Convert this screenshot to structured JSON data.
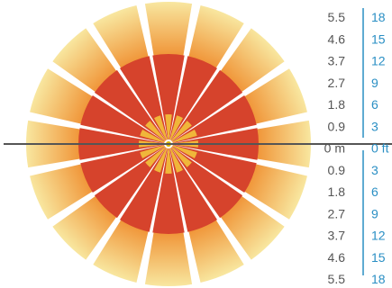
{
  "diagram": {
    "rays": 16,
    "colors": {
      "outer_fade_start": "#ef8a2a",
      "outer_fade_end": "#f8e7a0",
      "mid_red": "#d6432c",
      "inner_gold": "#f0b63a",
      "center_dot": "#d6b400",
      "axis_line": "#555555",
      "axis_rule": "#2a8fc4",
      "meter_text": "#555555",
      "feet_text": "#2a8fc4"
    }
  },
  "scale": {
    "meters": [
      "5.5",
      "4.6",
      "3.7",
      "2.7",
      "1.8",
      "0.9",
      "0 m",
      "0.9",
      "1.8",
      "2.7",
      "3.7",
      "4.6",
      "5.5"
    ],
    "feet": [
      "18",
      "15",
      "12",
      "9",
      "6",
      "3",
      "0 ft",
      "3",
      "6",
      "9",
      "12",
      "15",
      "18"
    ]
  }
}
